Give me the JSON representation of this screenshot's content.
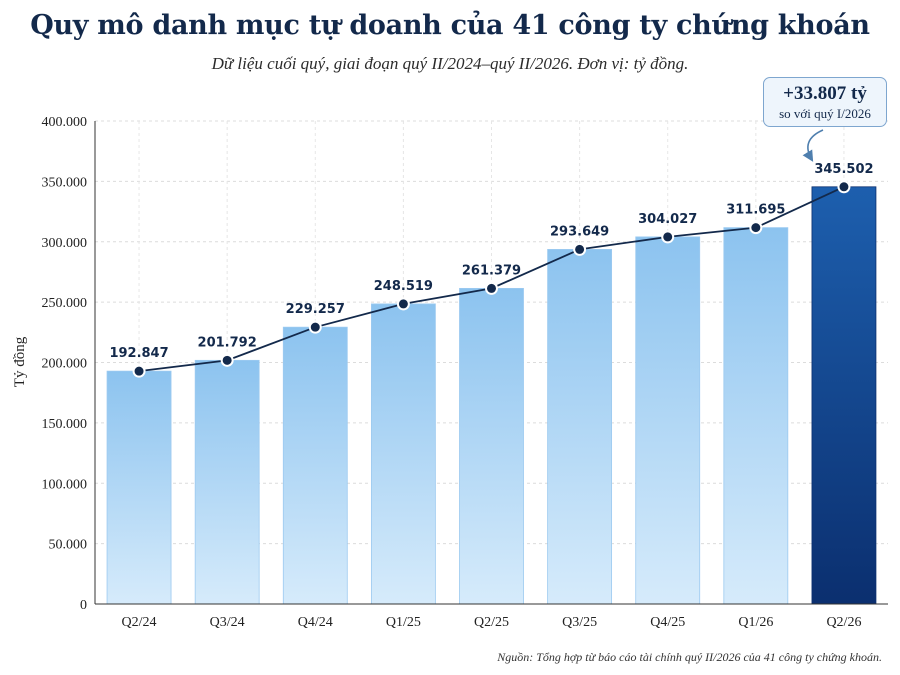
{
  "chart_data": {
    "type": "bar",
    "title": "Quy mô danh mục tự doanh của 41 công ty chứng khoán",
    "subtitle": "Dữ liệu cuối quý, giai đoạn quý II/2024–quý II/2026. Đơn vị: tỷ đồng.",
    "ylabel": "Tỷ đồng",
    "xlabel": "",
    "ylim": [
      0,
      400000
    ],
    "yticks": [
      0,
      50000,
      100000,
      150000,
      200000,
      250000,
      300000,
      350000,
      400000
    ],
    "ytick_labels": [
      "0",
      "50.000",
      "100.000",
      "150.000",
      "200.000",
      "250.000",
      "300.000",
      "350.000",
      "400.000"
    ],
    "categories": [
      "Q2/24",
      "Q3/24",
      "Q4/24",
      "Q1/25",
      "Q2/25",
      "Q3/25",
      "Q4/25",
      "Q1/26",
      "Q2/26"
    ],
    "values": [
      192847,
      201792,
      229257,
      248519,
      261379,
      293649,
      304027,
      311695,
      345502
    ],
    "value_labels": [
      "192.847",
      "201.792",
      "229.257",
      "248.519",
      "261.379",
      "293.649",
      "304.027",
      "311.695",
      "345.502"
    ],
    "overlay": "line-with-markers",
    "grid": true,
    "highlight_index": 8,
    "colors": {
      "bar_light": "#cfe6fa",
      "bar_mid": "#8cc3ef",
      "highlight_top": "#1d5fae",
      "highlight_bottom": "#0b2f6f",
      "line": "#13294b",
      "grid": "#dcdcdc"
    },
    "annotation": {
      "value": "+33.807 tỷ",
      "note": "so với quý I/2026"
    },
    "source": "Nguồn: Tổng hợp từ báo cáo tài chính quý II/2026 của 41 công ty chứng khoán."
  }
}
